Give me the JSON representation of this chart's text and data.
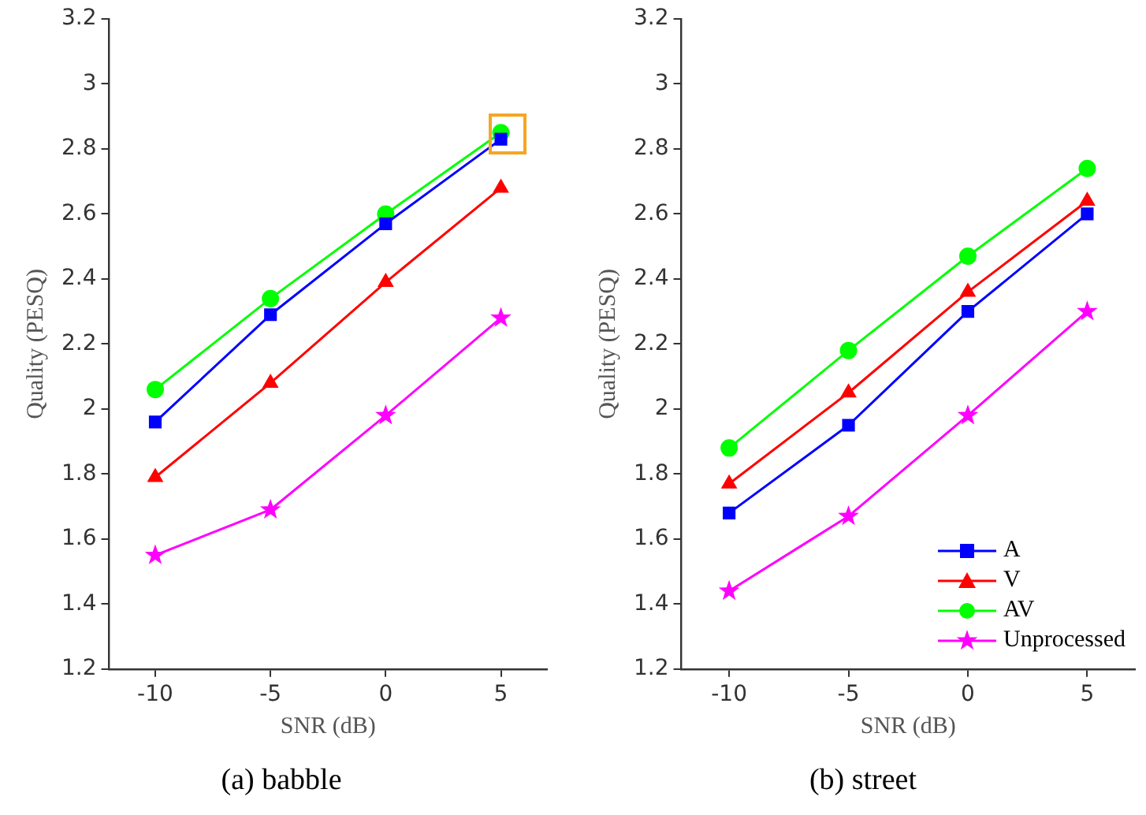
{
  "chart_data": [
    {
      "type": "line",
      "title": "(a) babble",
      "xlabel": "SNR (dB)",
      "ylabel": "Quality (PESQ)",
      "x": [
        -10,
        -5,
        0,
        5
      ],
      "xlim": [
        -12,
        7
      ],
      "xticks": [
        -10,
        -5,
        0,
        5
      ],
      "ylim": [
        1.2,
        3.2
      ],
      "yticks": [
        1.2,
        1.4,
        1.6,
        1.8,
        2,
        2.2,
        2.4,
        2.6,
        2.8,
        3,
        3.2
      ],
      "grid": false,
      "legend": false,
      "line_style": "solid",
      "series": [
        {
          "color": "#0000ff",
          "marker": "square",
          "values": [
            1.96,
            2.29,
            2.57,
            2.83
          ]
        },
        {
          "color": "#ff0000",
          "marker": "triangle",
          "values": [
            1.79,
            2.08,
            2.39,
            2.68
          ]
        },
        {
          "color": "#00ff00",
          "marker": "circle",
          "values": [
            2.06,
            2.34,
            2.6,
            2.85
          ]
        },
        {
          "color": "#ff00ff",
          "marker": "star",
          "values": [
            1.55,
            1.69,
            1.98,
            2.28
          ]
        }
      ]
    },
    {
      "type": "line",
      "title": "(b) street",
      "xlabel": "SNR (dB)",
      "ylabel": "Quality (PESQ)",
      "x": [
        -10,
        -5,
        0,
        5
      ],
      "xlim": [
        -12,
        7
      ],
      "xticks": [
        -10,
        -5,
        0,
        5
      ],
      "ylim": [
        1.2,
        3.2
      ],
      "yticks": [
        1.2,
        1.4,
        1.6,
        1.8,
        2,
        2.2,
        2.4,
        2.6,
        2.8,
        3,
        3.2
      ],
      "grid": false,
      "legend": "bottom right",
      "line_style": "solid",
      "series": [
        {
          "name": "A",
          "color": "#0000ff",
          "marker": "square",
          "values": [
            1.68,
            1.95,
            2.3,
            2.6
          ]
        },
        {
          "name": "V",
          "color": "#ff0000",
          "marker": "triangle",
          "values": [
            1.77,
            2.05,
            2.36,
            2.64
          ]
        },
        {
          "name": "AV",
          "color": "#00ff00",
          "marker": "circle",
          "values": [
            1.88,
            2.18,
            2.47,
            2.74
          ]
        },
        {
          "name": "Unprocessed",
          "color": "#ff00ff",
          "marker": "star",
          "values": [
            1.44,
            1.67,
            1.98,
            2.3
          ]
        }
      ]
    }
  ]
}
